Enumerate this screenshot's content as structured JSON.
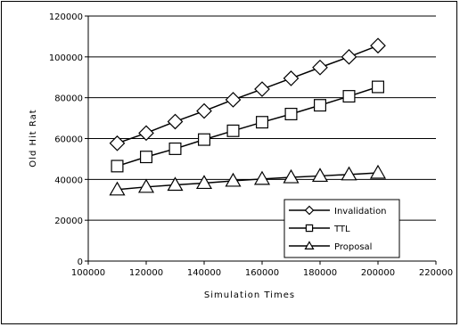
{
  "chart_data": {
    "type": "line",
    "title": "",
    "xlabel": "Simulation Times",
    "ylabel": "Old Hit Rat",
    "xlim": [
      100000,
      220000
    ],
    "ylim": [
      0,
      120000
    ],
    "xticks": [
      100000,
      120000,
      140000,
      160000,
      180000,
      200000,
      220000
    ],
    "yticks": [
      0,
      20000,
      40000,
      60000,
      80000,
      100000,
      120000
    ],
    "x": [
      110000,
      120000,
      130000,
      140000,
      150000,
      160000,
      170000,
      180000,
      190000,
      200000
    ],
    "grid": "horizontal",
    "legend": "bottom-right",
    "series": [
      {
        "name": "Invalidation",
        "marker": "diamond",
        "values": [
          57700,
          62700,
          68300,
          73500,
          79000,
          84200,
          89500,
          94800,
          100000,
          105500
        ]
      },
      {
        "name": "TTL",
        "marker": "square",
        "values": [
          46500,
          51000,
          55000,
          59500,
          63800,
          68000,
          72000,
          76300,
          80700,
          85300
        ]
      },
      {
        "name": "Proposal",
        "marker": "triangle",
        "values": [
          35000,
          36300,
          37300,
          38200,
          39300,
          40200,
          41000,
          41700,
          42400,
          43200
        ]
      }
    ]
  }
}
